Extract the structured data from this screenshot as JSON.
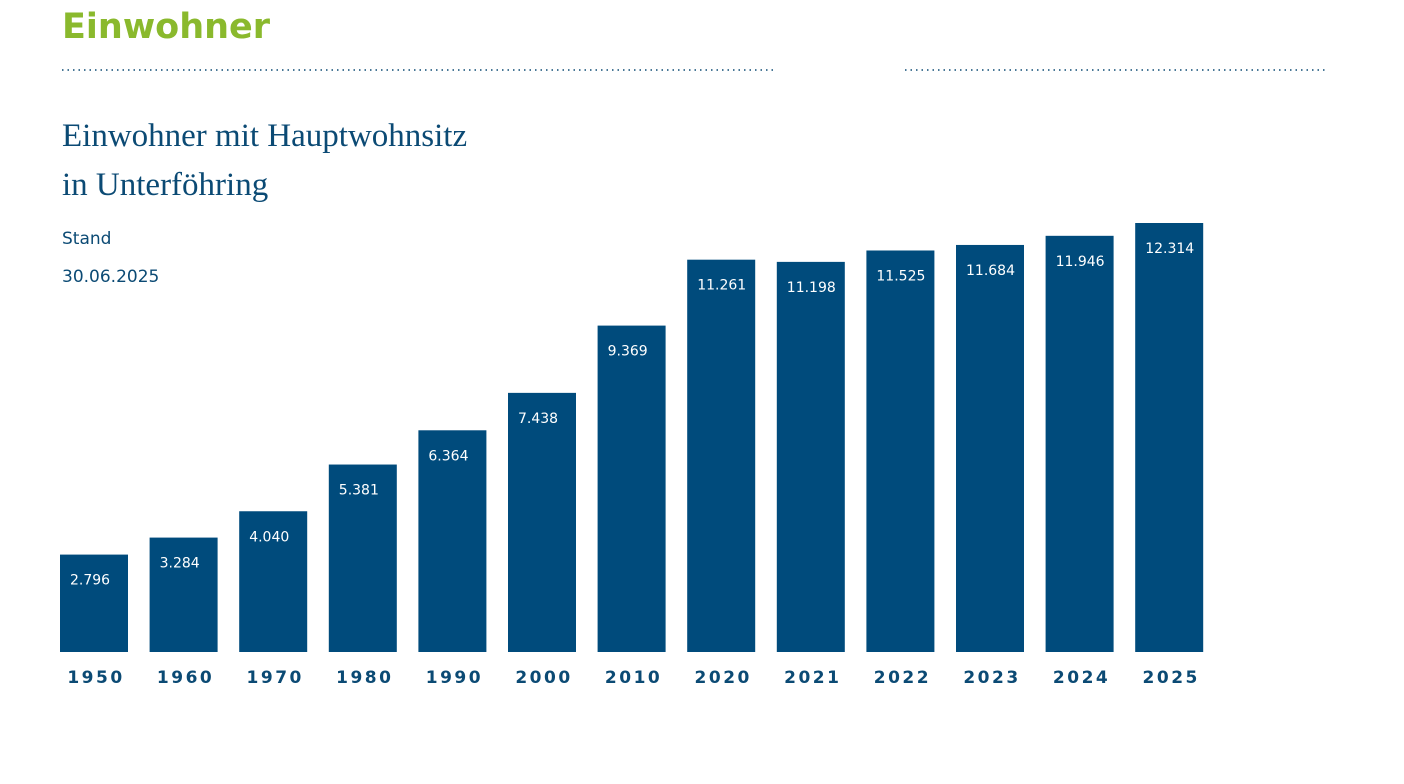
{
  "heading": "Einwohner",
  "chart_data": {
    "type": "bar",
    "title_lines": [
      "Einwohner mit Hauptwohnsitz",
      "in Unterföhring"
    ],
    "subtitle_lines": [
      "Stand",
      "30.06.2025"
    ],
    "categories": [
      "1950",
      "1960",
      "1970",
      "1980",
      "1990",
      "2000",
      "2010",
      "2020",
      "2021",
      "2022",
      "2023",
      "2024",
      "2025"
    ],
    "values": [
      2796,
      3284,
      4040,
      5381,
      6364,
      7438,
      9369,
      11261,
      11198,
      11525,
      11684,
      11946,
      12314
    ],
    "value_labels": [
      "2.796",
      "3.284",
      "4.040",
      "5.381",
      "6.364",
      "7.438",
      "9.369",
      "11.261",
      "11.198",
      "11.525",
      "11.684",
      "11.946",
      "12.314"
    ],
    "color": "#004b7c"
  }
}
